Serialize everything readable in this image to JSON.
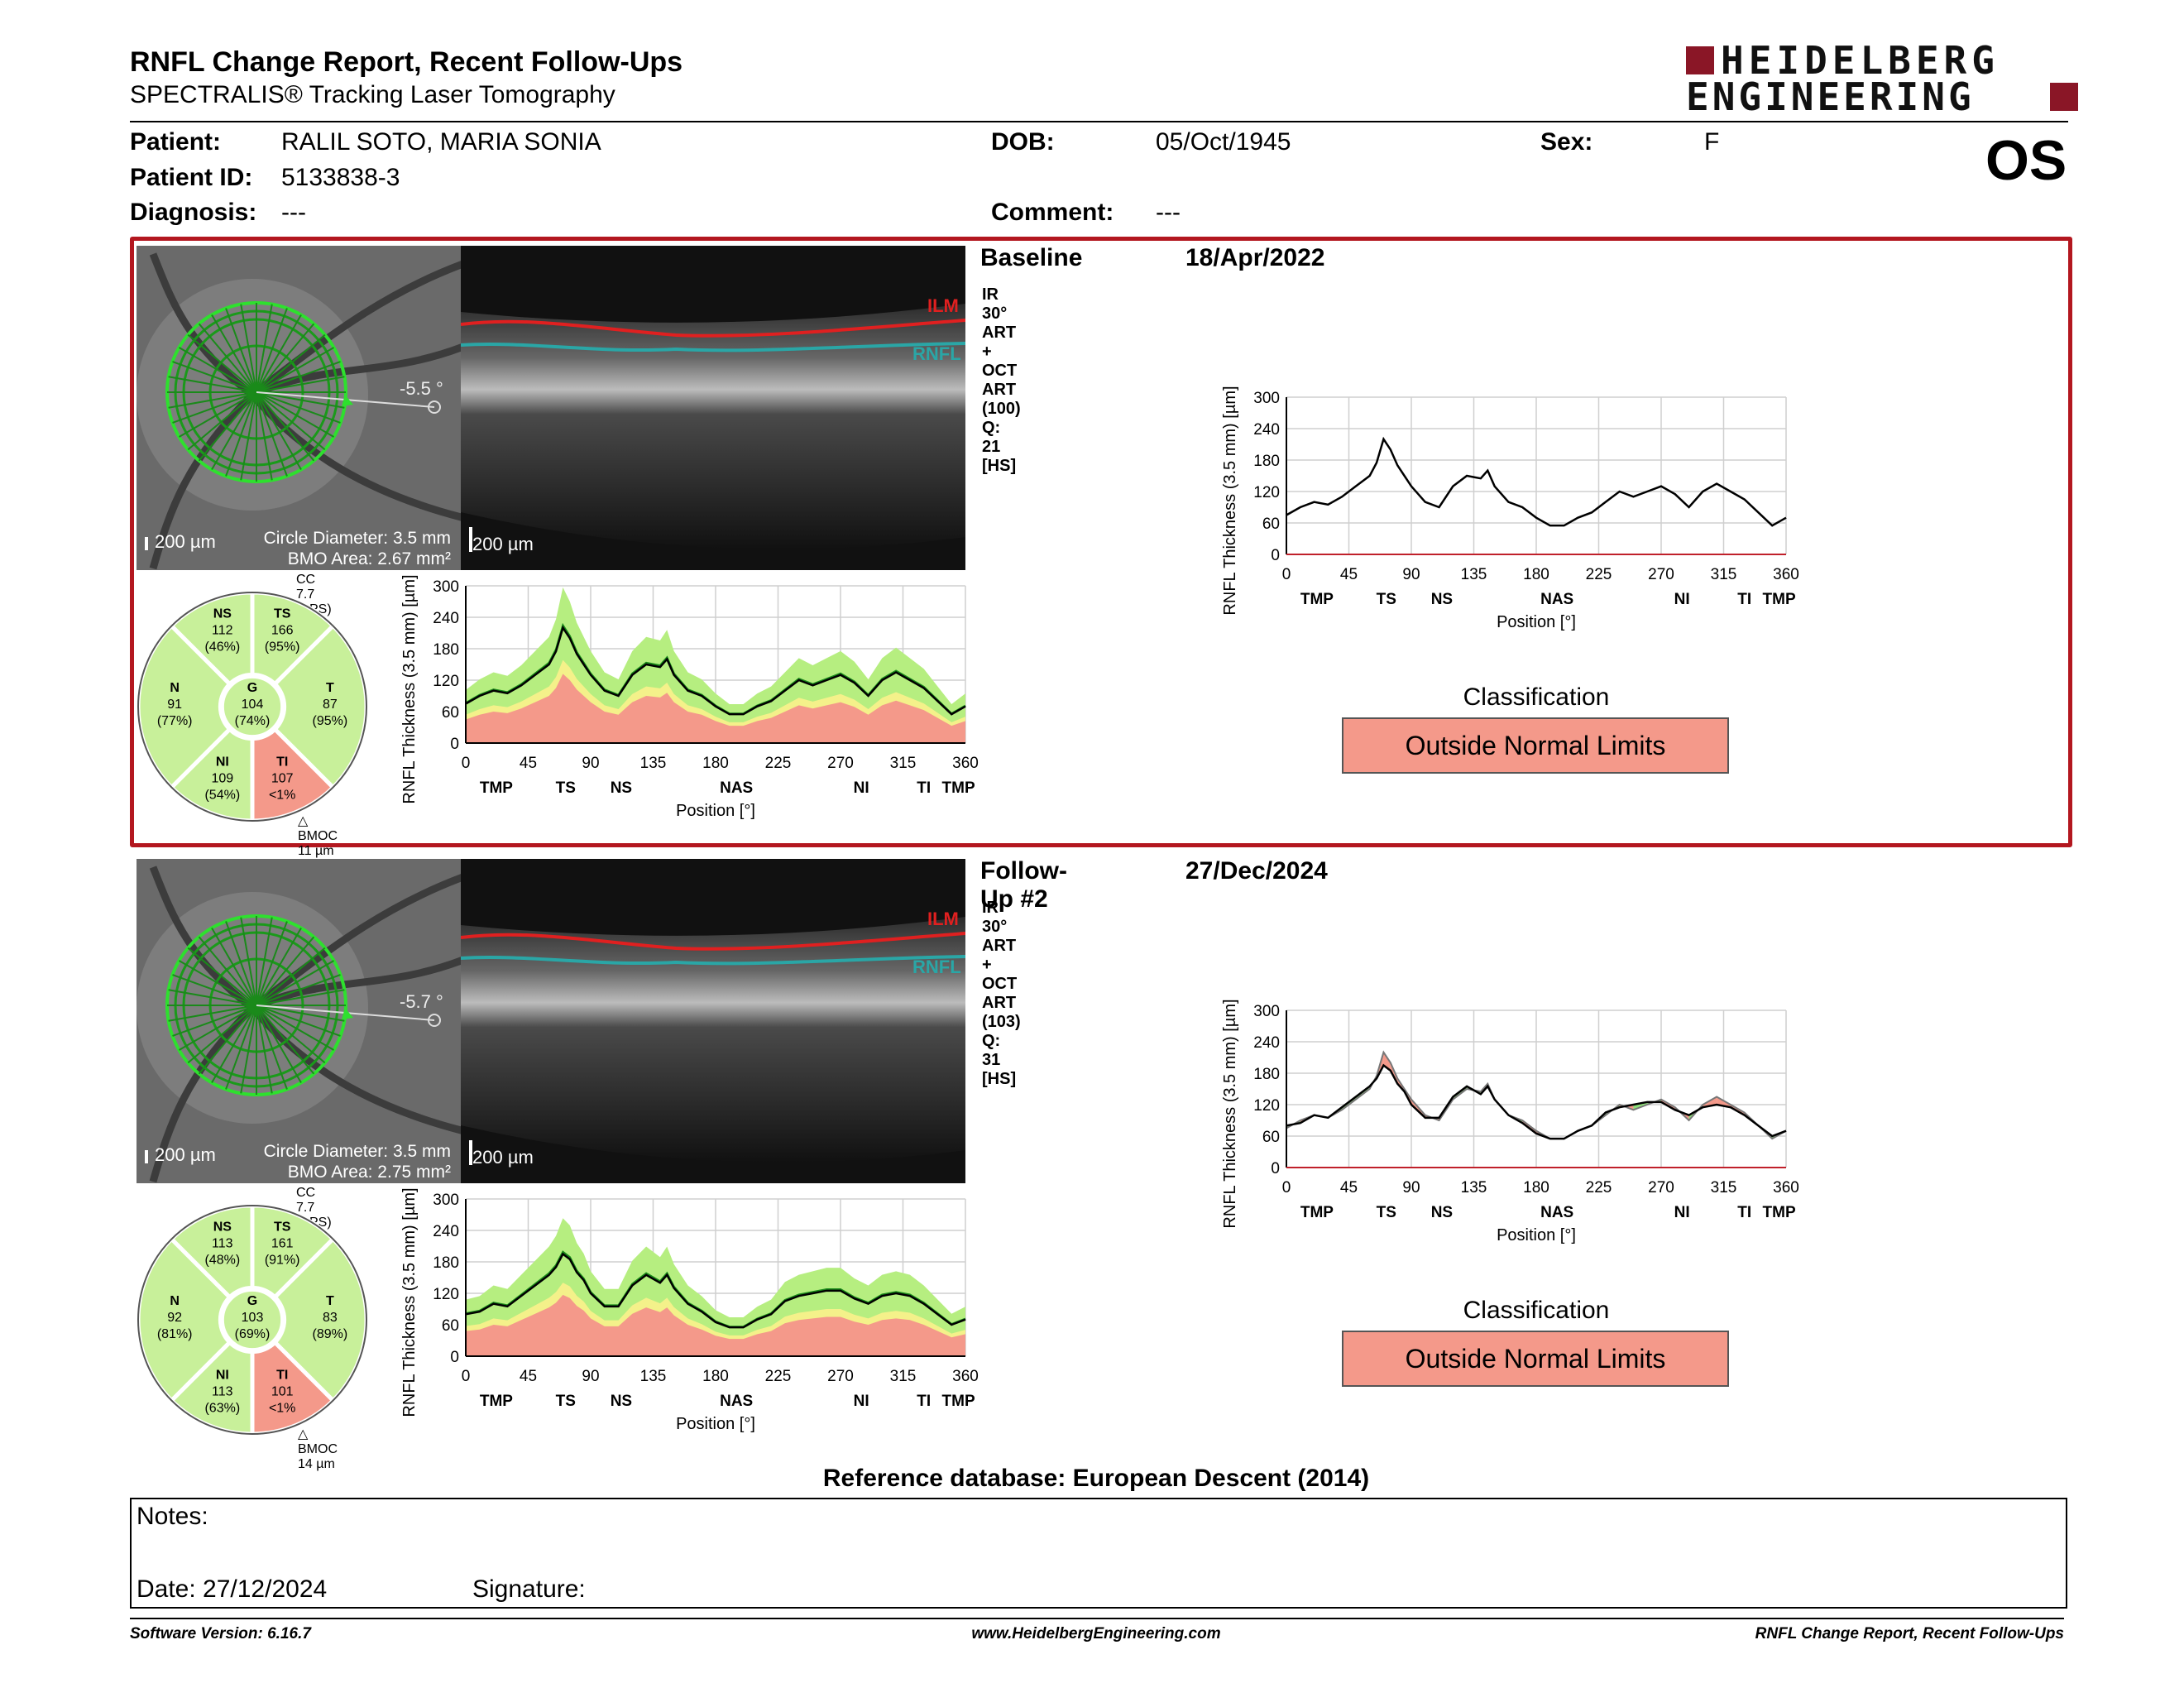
{
  "header": {
    "title": "RNFL Change Report, Recent Follow-Ups",
    "subtitle": "SPECTRALIS® Tracking Laser Tomography",
    "logo_line1": "HEIDELBERG",
    "logo_line2": "ENGINEERING",
    "eye": "OS"
  },
  "patient": {
    "patient_label": "Patient:",
    "patient_value": "RALIL SOTO, MARIA SONIA",
    "id_label": "Patient ID:",
    "id_value": "5133838-3",
    "diag_label": "Diagnosis:",
    "diag_value": "---",
    "dob_label": "DOB:",
    "dob_value": "05/Oct/1945",
    "comment_label": "Comment:",
    "comment_value": "---",
    "sex_label": "Sex:",
    "sex_value": "F"
  },
  "exams": [
    {
      "label": "Baseline",
      "date": "18/Apr/2022",
      "params": "IR 30° ART + OCT ART (100) Q: 21 [HS]",
      "angle": "-5.5 °",
      "circle_diameter": "Circle Diameter: 3.5 mm",
      "bmo_area": "BMO Area: 2.67 mm²",
      "scale_ir": "200 µm",
      "scale_oct": "200 µm",
      "ilm": "ILM",
      "rnfl": "RNFL",
      "cc": "CC 7.7 (APS)",
      "bmoc": "BMOC 11 µm",
      "sectors": {
        "NS": [
          "NS",
          "112",
          "(46%)"
        ],
        "TS": [
          "TS",
          "166",
          "(95%)"
        ],
        "N": [
          "N",
          "91",
          "(77%)"
        ],
        "G": [
          "G",
          "104",
          "(74%)"
        ],
        "T": [
          "T",
          "87",
          "(95%)"
        ],
        "NI": [
          "NI",
          "109",
          "(54%)"
        ],
        "TI": [
          "TI",
          "107",
          "<1%"
        ]
      },
      "classification_label": "Classification",
      "classification": "Outside Normal Limits"
    },
    {
      "label": "Follow-Up #2",
      "date": "27/Dec/2024",
      "params": "IR 30° ART + OCT ART (103) Q: 31 [HS]",
      "angle": "-5.7 °",
      "circle_diameter": "Circle Diameter: 3.5 mm",
      "bmo_area": "BMO Area: 2.75 mm²",
      "scale_ir": "200 µm",
      "scale_oct": "200 µm",
      "ilm": "ILM",
      "rnfl": "RNFL",
      "cc": "CC 7.7 (APS)",
      "bmoc": "BMOC 14 µm",
      "sectors": {
        "NS": [
          "NS",
          "113",
          "(48%)"
        ],
        "TS": [
          "TS",
          "161",
          "(91%)"
        ],
        "N": [
          "N",
          "92",
          "(81%)"
        ],
        "G": [
          "G",
          "103",
          "(69%)"
        ],
        "T": [
          "T",
          "83",
          "(89%)"
        ],
        "NI": [
          "NI",
          "113",
          "(63%)"
        ],
        "TI": [
          "TI",
          "101",
          "<1%"
        ]
      },
      "classification_label": "Classification",
      "classification": "Outside Normal Limits"
    }
  ],
  "chart_data": [
    {
      "type": "line",
      "title": "",
      "xlabel": "Position [°]",
      "ylabel": "RNFL Thickness (3.5 mm) [µm]",
      "xlim": [
        0,
        360
      ],
      "ylim": [
        0,
        300
      ],
      "xticks": [
        "0",
        "45",
        "90",
        "135",
        "180",
        "225",
        "270",
        "315",
        "360"
      ],
      "yticks": [
        "0",
        "60",
        "120",
        "180",
        "240",
        "300"
      ],
      "regions": [
        "TMP",
        "TS",
        "NS",
        "NAS",
        "NI",
        "TI",
        "TMP"
      ],
      "x": [
        0,
        10,
        20,
        30,
        40,
        50,
        60,
        65,
        70,
        75,
        80,
        85,
        90,
        100,
        110,
        120,
        130,
        140,
        145,
        150,
        160,
        170,
        180,
        190,
        200,
        210,
        220,
        230,
        240,
        250,
        260,
        270,
        280,
        290,
        300,
        310,
        320,
        330,
        340,
        350,
        360
      ],
      "series": [
        {
          "values": [
            75,
            90,
            100,
            95,
            110,
            130,
            150,
            175,
            220,
            200,
            170,
            150,
            130,
            100,
            90,
            130,
            150,
            145,
            160,
            130,
            100,
            90,
            70,
            55,
            55,
            70,
            80,
            100,
            120,
            110,
            120,
            130,
            115,
            90,
            120,
            135,
            120,
            105,
            80,
            55,
            70
          ]
        }
      ]
    },
    {
      "type": "line",
      "title": "",
      "xlabel": "Position [°]",
      "ylabel": "RNFL Thickness (3.5 mm) [µm]",
      "xlim": [
        0,
        360
      ],
      "ylim": [
        0,
        300
      ],
      "xticks": [
        "0",
        "45",
        "90",
        "135",
        "180",
        "225",
        "270",
        "315",
        "360"
      ],
      "yticks": [
        "0",
        "60",
        "120",
        "180",
        "240",
        "300"
      ],
      "regions": [
        "TMP",
        "TS",
        "NS",
        "NAS",
        "NI",
        "TI",
        "TMP"
      ],
      "x": [
        0,
        10,
        20,
        30,
        40,
        50,
        60,
        65,
        70,
        75,
        80,
        85,
        90,
        100,
        110,
        120,
        130,
        140,
        145,
        150,
        160,
        170,
        180,
        190,
        200,
        210,
        220,
        230,
        240,
        250,
        260,
        270,
        280,
        290,
        300,
        310,
        320,
        330,
        340,
        350,
        360
      ],
      "series": [
        {
          "values": [
            80,
            85,
            100,
            95,
            115,
            135,
            155,
            170,
            195,
            185,
            160,
            145,
            120,
            95,
            95,
            135,
            155,
            140,
            155,
            130,
            100,
            85,
            65,
            55,
            55,
            70,
            80,
            105,
            115,
            120,
            125,
            125,
            110,
            100,
            115,
            120,
            115,
            100,
            80,
            60,
            70
          ]
        }
      ]
    }
  ],
  "profile_regions": [
    "TMP",
    "TS",
    "NS",
    "NAS",
    "NI",
    "TI",
    "TMP"
  ],
  "profile_xticks": [
    "0",
    "45",
    "90",
    "135",
    "180",
    "225",
    "270",
    "315",
    "360"
  ],
  "profile_yticks": [
    "0",
    "60",
    "120",
    "180",
    "240",
    "300"
  ],
  "profile_xlabel": "Position [°]",
  "profile_ylabel": "RNFL Thickness (3.5 mm) [µm]",
  "colors": {
    "frame_red": "#b3171f",
    "abnormal_red": "#f4998a",
    "normal_green": "#b6ee80",
    "borderline_yellow": "#f4f18a",
    "logo_red": "#8a1626"
  },
  "reference": "Reference database: European Descent (2014)",
  "notes": {
    "notes_label": "Notes:",
    "date_label": "Date: 27/12/2024",
    "signature_label": "Signature:"
  },
  "footer": {
    "version": "Software Version: 6.16.7",
    "url": "www.HeidelbergEngineering.com",
    "report": "RNFL Change Report, Recent Follow-Ups"
  }
}
